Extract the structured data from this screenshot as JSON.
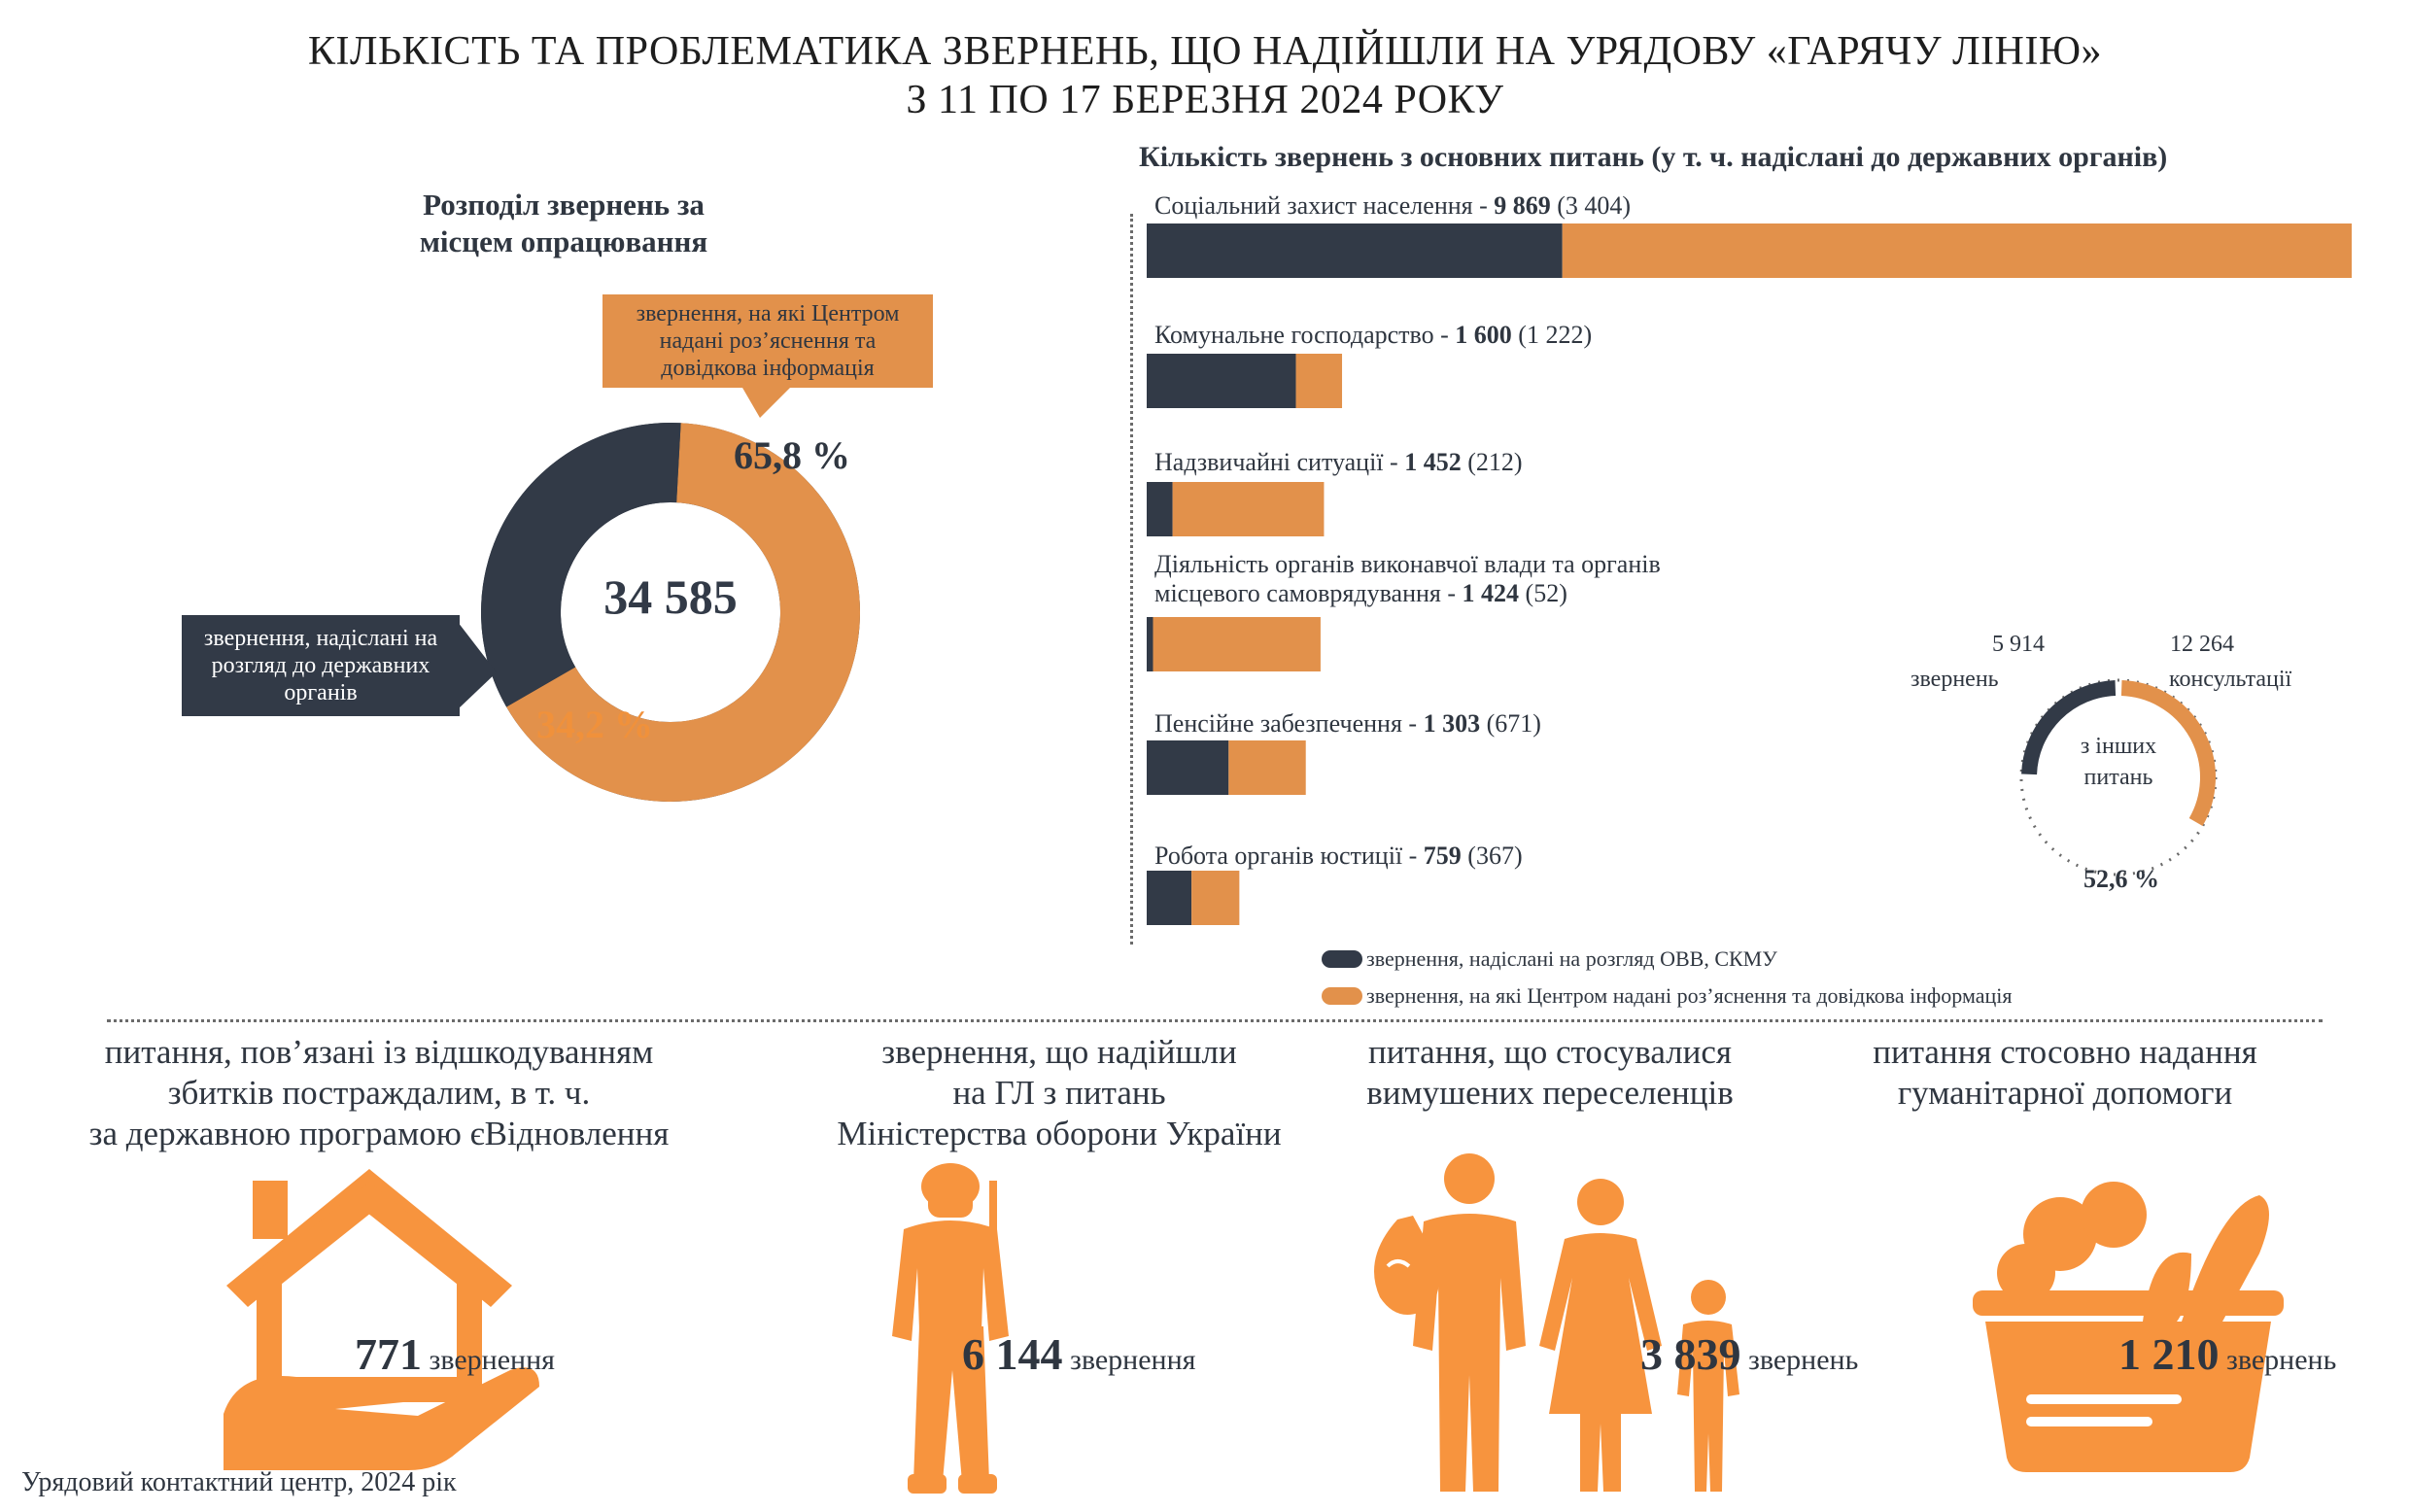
{
  "title_line1": "КІЛЬКІСТЬ ТА ПРОБЛЕМАТИКА ЗВЕРНЕНЬ, ЩО НАДІЙШЛИ НА УРЯДОВУ «ГАРЯЧУ ЛІНІЮ»",
  "title_line2": "З 11 ПО 17 БЕРЕЗНЯ 2024 РОКУ",
  "colors": {
    "dark": "#323a47",
    "orange": "#e2914b",
    "bright_orange": "#f0913b",
    "icon_orange": "#f7943e"
  },
  "donut": {
    "title_line1": "Розподіл звернень за",
    "title_line2": "місцем опрацювання",
    "total": "34 585",
    "orange_label": "звернення, на які Центром надані роз’яснення та довідкова інформація",
    "orange_pct_text": "65,8 %",
    "dark_label": "звернення, надіслані на розгляд до державних органів",
    "dark_pct_text": "34,2 %"
  },
  "bars": {
    "title": "Кількість звернень з основних питань (у т. ч. надіслані до державних органів)",
    "items": [
      {
        "label": "Соціальний захист населення - ",
        "total_text": "9 869",
        "sent_text": " (3 404)"
      },
      {
        "label": "Комунальне господарство - ",
        "total_text": "1 600",
        "sent_text": " (1 222)"
      },
      {
        "label": "Надзвичайні ситуації - ",
        "total_text": "1 452",
        "sent_text": " (212)"
      },
      {
        "label_line1": "Діяльність органів виконавчої влади та органів",
        "label": "місцевого самоврядування - ",
        "total_text": "1 424",
        "sent_text": " (52)"
      },
      {
        "label": "Пенсійне забезпечення - ",
        "total_text": "1 303",
        "sent_text": " (671)"
      },
      {
        "label": "Робота органів юстиції - ",
        "total_text": "759",
        "sent_text": " (367)"
      }
    ],
    "legend_dark": "звернення, надіслані на розгляд ОВВ, СКМУ",
    "legend_orange": "звернення, на які Центром надані роз’яснення та довідкова інформація"
  },
  "chart_data": [
    {
      "type": "pie",
      "title": "Розподіл звернень за місцем опрацювання",
      "total": 34585,
      "slices": [
        {
          "name": "звернення, на які Центром надані роз’яснення та довідкова інформація",
          "value": 65.8
        },
        {
          "name": "звернення, надіслані на розгляд до державних органів",
          "value": 34.2
        }
      ]
    },
    {
      "type": "bar",
      "orientation": "horizontal",
      "stacked": true,
      "title": "Кількість звернень з основних питань (у т. ч. надіслані до державних органів)",
      "categories": [
        "Соціальний захист населення",
        "Комунальне господарство",
        "Надзвичайні ситуації",
        "Діяльність органів виконавчої влади та органів місцевого самоврядування",
        "Пенсійне забезпечення",
        "Робота органів юстиції"
      ],
      "totals": [
        9869,
        1600,
        1452,
        1424,
        1303,
        759
      ],
      "series": [
        {
          "name": "звернення, надіслані на розгляд ОВВ, СКМУ",
          "values": [
            3404,
            1222,
            212,
            52,
            671,
            367
          ]
        },
        {
          "name": "звернення, на які Центром надані роз’яснення та довідкова інформація",
          "values": [
            6465,
            378,
            1240,
            1372,
            632,
            392
          ]
        }
      ],
      "legend": "bottom"
    },
    {
      "type": "pie",
      "title": "з інших питань",
      "slices": [
        {
          "name": "звернень",
          "value": 5914
        },
        {
          "name": "консультації",
          "value": 12264
        }
      ],
      "percent_text": "52,6 %",
      "percent_value": 52.6
    }
  ],
  "mini_donut": {
    "left_value": "5 914",
    "left_label": "звернень",
    "right_value": "12 264",
    "right_label": "консультації",
    "center_line1": "з інших",
    "center_line2": "питань",
    "pct_text": "52,6 %"
  },
  "topics": [
    {
      "line1": "питання, пов’язані із відшкодуванням",
      "line2": "збитків постраждалим, в т. ч.",
      "line3": "за державною програмою єВідновлення",
      "number": "771",
      "unit": " звернення",
      "icon": "house-in-hand-icon"
    },
    {
      "line1": "звернення, що надійшли",
      "line2": "на ГЛ з питань",
      "line3": "Міністерства оборони України",
      "number": "6 144",
      "unit": " звернення",
      "icon": "soldier-icon"
    },
    {
      "line1": "питання, що стосувалися",
      "line2": "вимушених переселенців",
      "number": "3 839",
      "unit": " звернень",
      "icon": "family-icon"
    },
    {
      "line1": "питання стосовно надання",
      "line2": "гуманітарної допомоги",
      "number": "1 210",
      "unit": " звернень",
      "icon": "food-basket-icon"
    }
  ],
  "footer": "Урядовий контактний центр, 2024 рік"
}
